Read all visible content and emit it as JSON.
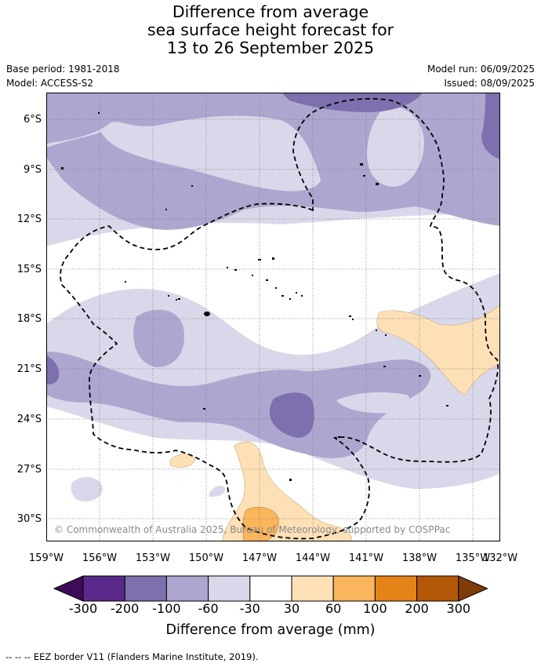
{
  "title": {
    "line1": "Difference from average",
    "line2": "sea surface height forecast for",
    "line3": "13 to 26 September 2025"
  },
  "meta": {
    "base_period": "Base period: 1981-2018",
    "model": "Model: ACCESS-S2",
    "model_run": "Model run: 06/09/2025",
    "issued": "Issued: 08/09/2025"
  },
  "map": {
    "lat_labels": [
      "6°S",
      "9°S",
      "12°S",
      "15°S",
      "18°S",
      "21°S",
      "24°S",
      "27°S",
      "30°S"
    ],
    "lon_labels": [
      "159°W",
      "156°W",
      "153°W",
      "150°W",
      "147°W",
      "144°W",
      "141°W",
      "138°W",
      "135°W",
      "132°W"
    ],
    "copyright": "© Commonwealth of Australia 2025, Bureau of Meteorology, supported by COSPPac"
  },
  "colorbar": {
    "ticks": [
      "-300",
      "-200",
      "-100",
      "-60",
      "-30",
      "30",
      "60",
      "100",
      "200",
      "300"
    ],
    "colors": [
      "#3f0a57",
      "#5a2a8a",
      "#7e6fae",
      "#ada6cf",
      "#d9d8ea",
      "#ffffff",
      "#fde0b6",
      "#fbb55c",
      "#e48418",
      "#b35806",
      "#7f3b08"
    ],
    "title": "Difference from average (mm)"
  },
  "legend": {
    "eez_text": "--  --  -- EEZ border V11 (Flanders Marine Institute, 2019)."
  }
}
